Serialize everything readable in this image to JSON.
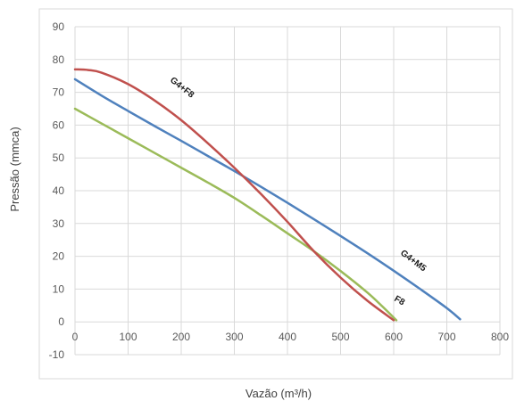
{
  "chart_data": {
    "type": "line",
    "title": "",
    "xlabel": "Vazão (m³/h)",
    "ylabel": "Pressão (mmca)",
    "xlim": [
      0,
      800
    ],
    "ylim": [
      -10,
      90
    ],
    "x_ticks": [
      0,
      100,
      200,
      300,
      400,
      500,
      600,
      700,
      800
    ],
    "y_ticks": [
      -10,
      0,
      10,
      20,
      30,
      40,
      50,
      60,
      70,
      80,
      90
    ],
    "grid": true,
    "legend": "none",
    "series": [
      {
        "name": "G4+F8",
        "color": "#c0504d",
        "points": [
          [
            0,
            77
          ],
          [
            25,
            76.8
          ],
          [
            50,
            76
          ],
          [
            100,
            72.5
          ],
          [
            150,
            67.5
          ],
          [
            200,
            61.5
          ],
          [
            250,
            54.5
          ],
          [
            300,
            47
          ],
          [
            350,
            39
          ],
          [
            400,
            30.5
          ],
          [
            450,
            21.5
          ],
          [
            500,
            13.5
          ],
          [
            550,
            6.5
          ],
          [
            600,
            0.5
          ]
        ]
      },
      {
        "name": "G4+M5",
        "color": "#4f81bd",
        "points": [
          [
            0,
            74
          ],
          [
            50,
            69
          ],
          [
            100,
            64.3
          ],
          [
            150,
            59.7
          ],
          [
            200,
            55.2
          ],
          [
            250,
            50.6
          ],
          [
            300,
            46
          ],
          [
            350,
            41.2
          ],
          [
            400,
            36.3
          ],
          [
            450,
            31.3
          ],
          [
            500,
            26.2
          ],
          [
            550,
            21
          ],
          [
            600,
            15.6
          ],
          [
            650,
            10
          ],
          [
            700,
            4.2
          ],
          [
            725,
            0.8
          ]
        ]
      },
      {
        "name": "F8",
        "color": "#9bbb59",
        "points": [
          [
            0,
            65
          ],
          [
            50,
            60.5
          ],
          [
            100,
            56
          ],
          [
            150,
            51.5
          ],
          [
            200,
            47
          ],
          [
            250,
            42.5
          ],
          [
            300,
            37.8
          ],
          [
            350,
            32.5
          ],
          [
            400,
            27
          ],
          [
            450,
            21.5
          ],
          [
            500,
            15.5
          ],
          [
            550,
            9
          ],
          [
            580,
            4.5
          ],
          [
            605,
            0.5
          ]
        ]
      }
    ]
  }
}
